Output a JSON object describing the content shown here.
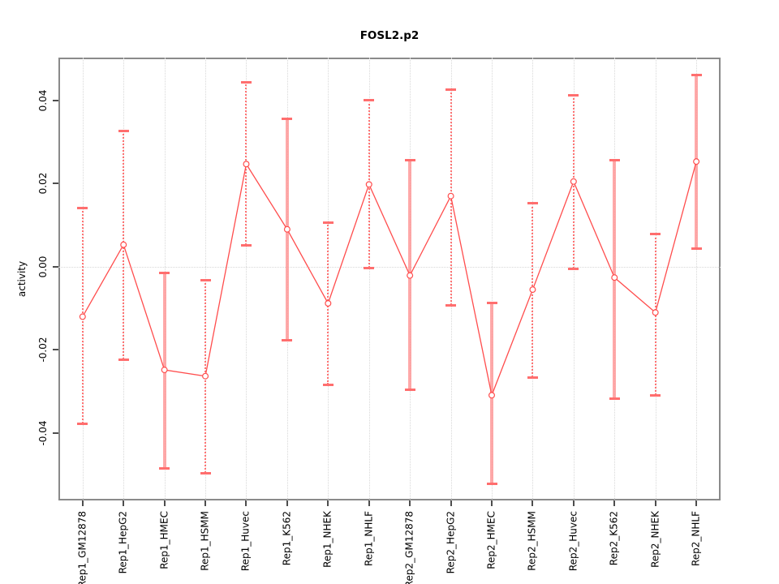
{
  "title": "FOSL2.p2",
  "chart_data": {
    "type": "line",
    "title": "FOSL2.p2",
    "xlabel": "",
    "ylabel": "activity",
    "legend": "none",
    "grid": "vertical dotted gridline per category plus dotted horizontal line at y=0",
    "ylim": [
      -0.0562,
      0.0503
    ],
    "yticks": [
      0.04,
      0.02,
      0.0,
      -0.02,
      -0.04
    ],
    "ytick_labels": [
      "0.04",
      "0.02",
      "0.00",
      "-0.02",
      "-0.04"
    ],
    "categories": [
      "Rep1_GM12878",
      "Rep1_HepG2",
      "Rep1_HMEC",
      "Rep1_HSMM",
      "Rep1_Huvec",
      "Rep1_K562",
      "Rep1_NHEK",
      "Rep1_NHLF",
      "Rep2_GM12878",
      "Rep2_HepG2",
      "Rep2_HMEC",
      "Rep2_HSMM",
      "Rep2_Huvec",
      "Rep2_K562",
      "Rep2_NHEK",
      "Rep2_NHLF"
    ],
    "series": [
      {
        "name": "activity",
        "values": [
          -0.012,
          0.0053,
          -0.0248,
          -0.0263,
          0.0247,
          0.009,
          -0.0088,
          0.0198,
          -0.0021,
          0.017,
          -0.0309,
          -0.0055,
          0.0205,
          -0.0026,
          -0.011,
          0.0253
        ]
      }
    ],
    "error_low": [
      -0.0377,
      -0.0223,
      -0.0484,
      -0.0496,
      0.0052,
      -0.0175,
      -0.0283,
      -0.0003,
      -0.0295,
      -0.0092,
      -0.0522,
      -0.0265,
      -0.0005,
      -0.0316,
      -0.0308,
      0.0044
    ],
    "error_high": [
      0.0143,
      0.0328,
      -0.0013,
      -0.0031,
      0.0445,
      0.0357,
      0.0107,
      0.0401,
      0.0257,
      0.0427,
      -0.0086,
      0.0154,
      0.0414,
      0.0257,
      0.0079,
      0.0463
    ],
    "error_bar_styles": [
      "thin",
      "thin",
      "thick",
      "thin",
      "thin",
      "thick",
      "thin",
      "thin",
      "thick",
      "thin",
      "thick",
      "thin",
      "thin",
      "thick",
      "thin",
      "thick"
    ],
    "colors": {
      "series_line": "#ff4d4d",
      "point_stroke": "#ff4d4d",
      "point_fill": "#ffffff",
      "error_bar_thin": "#ff7373",
      "error_bar_thick": "rgba(255,140,140,0.75)",
      "error_cap": "#ff6e6e",
      "gridline": "#d8d8d8",
      "plot_border": "#8a8a8a",
      "tick": "#4d4d4d",
      "text": "#000000"
    }
  }
}
